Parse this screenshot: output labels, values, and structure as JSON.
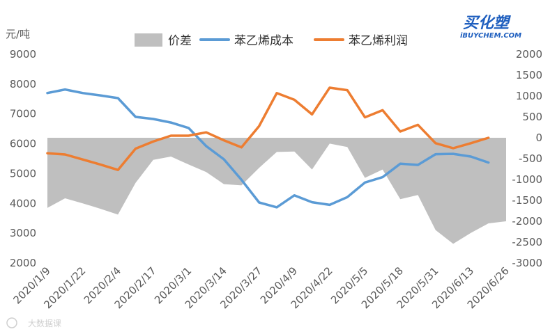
{
  "logo": {
    "main": "买化塑",
    "sub": "iBUYCHEM.COM"
  },
  "watermark": "大数据课",
  "chart_data": {
    "type": "line",
    "y_unit_left": "元/吨",
    "ylim_left": [
      2000,
      9000
    ],
    "yticks_left": [
      2000,
      3000,
      4000,
      5000,
      6000,
      7000,
      8000,
      9000
    ],
    "ylim_right": [
      -3000,
      2000
    ],
    "yticks_right": [
      -3000,
      -2500,
      -2000,
      -1500,
      -1000,
      -500,
      0,
      500,
      1000,
      1500,
      2000
    ],
    "xtick_labels": [
      "2020/1/9",
      "2020/1/22",
      "2020/2/4",
      "2020/2/17",
      "2020/3/1",
      "2020/3/14",
      "2020/3/27",
      "2020/4/9",
      "2020/4/22",
      "2020/5/5",
      "2020/5/18",
      "2020/5/31",
      "2020/6/13",
      "2020/6/26"
    ],
    "x_count": 27,
    "grid": false,
    "legend_position": "top",
    "colors": {
      "spread": "#bfbfbf",
      "cost": "#5b9bd5",
      "profit": "#ed7d31"
    },
    "series": [
      {
        "name": "价差",
        "kind": "area",
        "axis": "right",
        "values": [
          -1680,
          -1450,
          -1570,
          -1700,
          -1840,
          -1080,
          -530,
          -450,
          -640,
          -820,
          -1110,
          -1140,
          -720,
          -340,
          -330,
          -760,
          -140,
          -220,
          -960,
          -760,
          -1470,
          -1370,
          -2210,
          -2540,
          -2280,
          -2050,
          -2000
        ]
      },
      {
        "name": "苯乙烯成本",
        "kind": "line",
        "axis": "left",
        "values": [
          7700,
          7820,
          7700,
          7620,
          7530,
          6900,
          6830,
          6710,
          6530,
          5920,
          5480,
          4790,
          4030,
          3870,
          4270,
          4040,
          3950,
          4210,
          4700,
          4880,
          5330,
          5290,
          5650,
          5660,
          5570,
          5370
        ]
      },
      {
        "name": "苯乙烯利润",
        "kind": "line",
        "axis": "right",
        "values": [
          -370,
          -400,
          -520,
          -640,
          -770,
          -260,
          -90,
          50,
          50,
          130,
          -60,
          -230,
          280,
          1070,
          910,
          560,
          1200,
          1140,
          490,
          660,
          150,
          310,
          -130,
          -250,
          -130,
          0
        ]
      }
    ]
  }
}
